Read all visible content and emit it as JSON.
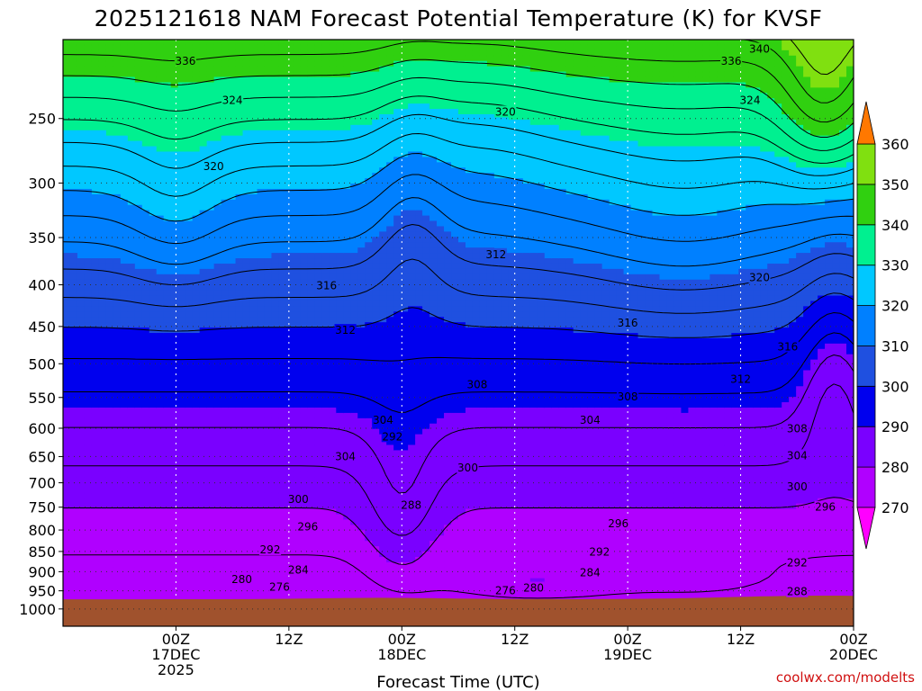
{
  "title": "2025121618 NAM Forecast Potential Temperature (K) for KVSF",
  "credit": "coolwx.com/modelts",
  "colors": {
    "ground": "#A0522D",
    "credit": "#d01010",
    "bands": [
      "#ff00ff",
      "#b000ff",
      "#7a00ff",
      "#0000ee",
      "#1f50e0",
      "#0080ff",
      "#00c8ff",
      "#00f090",
      "#30d010",
      "#80e010",
      "#ffff00",
      "#ffb000",
      "#ff7800"
    ]
  },
  "chart_data": {
    "type": "heatmap",
    "title": "2025121618 NAM Forecast Potential Temperature (K) for KVSF",
    "xlabel": "Forecast Time (UTC)",
    "ylabel": "",
    "y_axis": "pressure (hPa), log scale, inverted",
    "ylim": [
      1050,
      200
    ],
    "yticks": [
      1000,
      950,
      900,
      850,
      800,
      750,
      700,
      650,
      600,
      550,
      500,
      450,
      400,
      350,
      300,
      250
    ],
    "yticklabels": [
      "1000",
      "950",
      "900",
      "850",
      "800",
      "750",
      "700",
      "650",
      "600",
      "550",
      "500",
      "450",
      "400",
      "350",
      "300",
      "250"
    ],
    "x_hours_range": [
      -6,
      78
    ],
    "xticks": [
      {
        "hour": 6,
        "lines": [
          "00Z",
          "17DEC",
          "2025"
        ]
      },
      {
        "hour": 18,
        "lines": [
          "12Z"
        ]
      },
      {
        "hour": 30,
        "lines": [
          "00Z",
          "18DEC"
        ]
      },
      {
        "hour": 42,
        "lines": [
          "12Z"
        ]
      },
      {
        "hour": 54,
        "lines": [
          "00Z",
          "19DEC"
        ]
      },
      {
        "hour": 66,
        "lines": [
          "12Z"
        ]
      },
      {
        "hour": 78,
        "lines": [
          "00Z",
          "20DEC"
        ]
      }
    ],
    "colorbar": {
      "levels": [
        270,
        280,
        290,
        300,
        310,
        320,
        330,
        340,
        350,
        360
      ],
      "units": "K",
      "extend": "both"
    },
    "contour_interval": 4,
    "sample_profiles": [
      {
        "hour": 0,
        "theta_by_pressure": {
          "950": 276,
          "900": 280,
          "850": 290,
          "750": 300,
          "650": 304,
          "500": 312,
          "400": 316,
          "300": 322,
          "250": 326
        }
      },
      {
        "hour": 30,
        "theta_by_pressure": {
          "950": 284,
          "850": 288,
          "700": 290,
          "600": 295,
          "500": 308,
          "400": 310,
          "300": 314,
          "250": 318
        }
      },
      {
        "hour": 54,
        "theta_by_pressure": {
          "950": 284,
          "900": 290,
          "800": 296,
          "650": 304,
          "500": 314,
          "400": 318,
          "300": 324,
          "250": 330
        }
      },
      {
        "hour": 74,
        "theta_by_pressure": {
          "950": 292,
          "850": 295,
          "700": 298,
          "600": 302,
          "500": 306,
          "400": 312,
          "300": 322,
          "250": 345
        }
      }
    ],
    "contour_labels": [
      {
        "value": "336",
        "hour": 7,
        "p": 213
      },
      {
        "value": "324",
        "hour": 12,
        "p": 238
      },
      {
        "value": "320",
        "hour": 10,
        "p": 287
      },
      {
        "value": "316",
        "hour": 22,
        "p": 402
      },
      {
        "value": "312",
        "hour": 24,
        "p": 456
      },
      {
        "value": "308",
        "hour": 38,
        "p": 532
      },
      {
        "value": "304",
        "hour": 28,
        "p": 588
      },
      {
        "value": "292",
        "hour": 29,
        "p": 616
      },
      {
        "value": "304",
        "hour": 24,
        "p": 652
      },
      {
        "value": "300",
        "hour": 37,
        "p": 673
      },
      {
        "value": "300",
        "hour": 19,
        "p": 735
      },
      {
        "value": "288",
        "hour": 31,
        "p": 748
      },
      {
        "value": "296",
        "hour": 20,
        "p": 795
      },
      {
        "value": "292",
        "hour": 16,
        "p": 848
      },
      {
        "value": "284",
        "hour": 19,
        "p": 898
      },
      {
        "value": "280",
        "hour": 13,
        "p": 922
      },
      {
        "value": "276",
        "hour": 17,
        "p": 943
      },
      {
        "value": "276",
        "hour": 41,
        "p": 952
      },
      {
        "value": "280",
        "hour": 44,
        "p": 945
      },
      {
        "value": "284",
        "hour": 50,
        "p": 905
      },
      {
        "value": "292",
        "hour": 51,
        "p": 853
      },
      {
        "value": "296",
        "hour": 53,
        "p": 788
      },
      {
        "value": "304",
        "hour": 50,
        "p": 588
      },
      {
        "value": "308",
        "hour": 54,
        "p": 550
      },
      {
        "value": "312",
        "hour": 66,
        "p": 524
      },
      {
        "value": "316",
        "hour": 54,
        "p": 447
      },
      {
        "value": "320",
        "hour": 41,
        "p": 246
      },
      {
        "value": "312",
        "hour": 40,
        "p": 368
      },
      {
        "value": "320",
        "hour": 68,
        "p": 393
      },
      {
        "value": "316",
        "hour": 71,
        "p": 478
      },
      {
        "value": "308",
        "hour": 72,
        "p": 602
      },
      {
        "value": "304",
        "hour": 72,
        "p": 650
      },
      {
        "value": "300",
        "hour": 72,
        "p": 710
      },
      {
        "value": "296",
        "hour": 75,
        "p": 752
      },
      {
        "value": "292",
        "hour": 72,
        "p": 880
      },
      {
        "value": "288",
        "hour": 72,
        "p": 955
      },
      {
        "value": "336",
        "hour": 65,
        "p": 213
      },
      {
        "value": "340",
        "hour": 68,
        "p": 206
      },
      {
        "value": "324",
        "hour": 67,
        "p": 238
      }
    ]
  }
}
